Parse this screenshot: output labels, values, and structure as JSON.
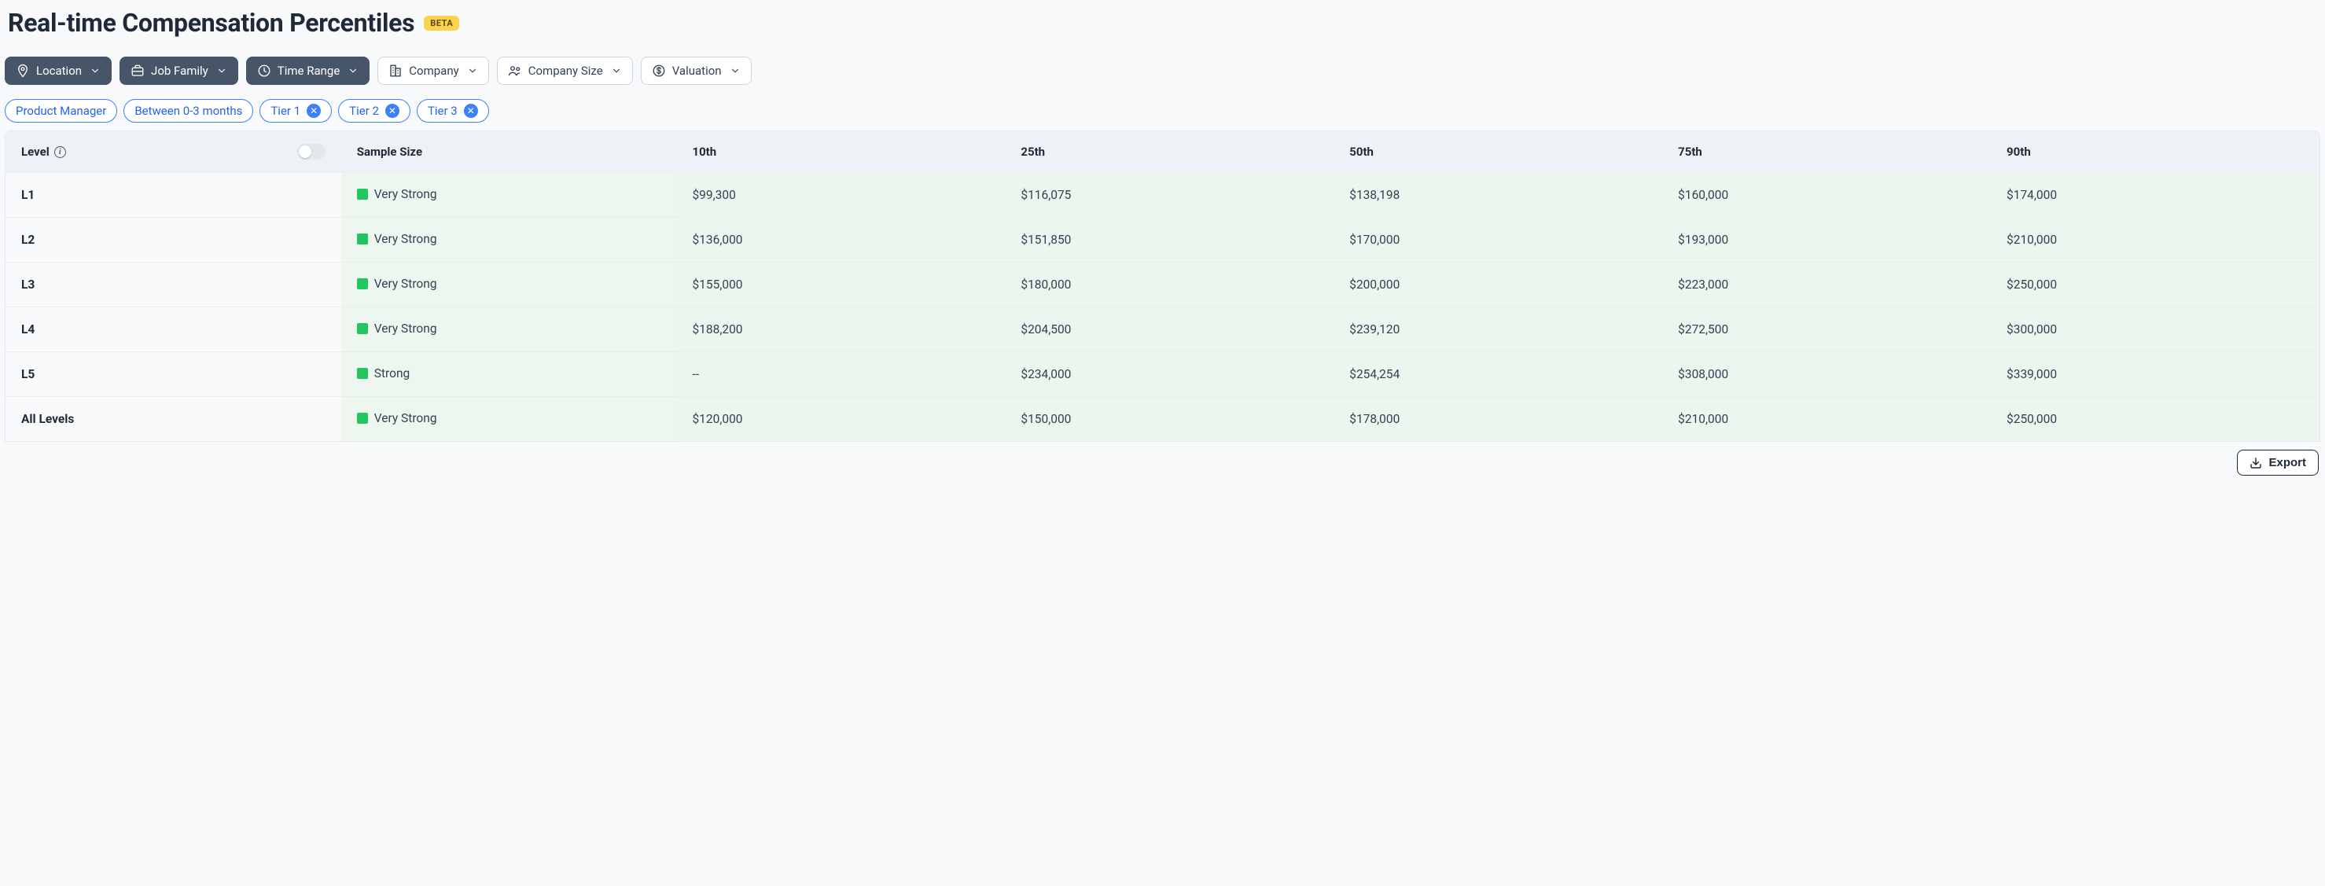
{
  "header": {
    "title": "Real-time Compensation Percentiles",
    "badge": "BETA"
  },
  "filters": {
    "primary": [
      {
        "key": "location",
        "label": "Location",
        "icon": "pin",
        "style": "dark"
      },
      {
        "key": "job-family",
        "label": "Job Family",
        "icon": "briefcase",
        "style": "dark"
      },
      {
        "key": "time-range",
        "label": "Time Range",
        "icon": "clock",
        "style": "dark"
      },
      {
        "key": "company",
        "label": "Company",
        "icon": "building",
        "style": "light"
      },
      {
        "key": "company-size",
        "label": "Company Size",
        "icon": "people",
        "style": "light"
      },
      {
        "key": "valuation",
        "label": "Valuation",
        "icon": "dollar",
        "style": "light"
      }
    ],
    "chips": [
      {
        "key": "product-manager",
        "label": "Product Manager",
        "removable": false
      },
      {
        "key": "time-range-chip",
        "label": "Between 0-3 months",
        "removable": false
      },
      {
        "key": "tier-1",
        "label": "Tier 1",
        "removable": true
      },
      {
        "key": "tier-2",
        "label": "Tier 2",
        "removable": true
      },
      {
        "key": "tier-3",
        "label": "Tier 3",
        "removable": true
      }
    ]
  },
  "table": {
    "columns": {
      "level": "Level",
      "sample": "Sample Size",
      "percentiles": [
        "10th",
        "25th",
        "50th",
        "75th",
        "90th"
      ]
    },
    "strength_color": "#22c55e",
    "header_bg": "#eef2f7",
    "pct_cell_bg": "#ecf5ee",
    "sample_cell_bg": "#edf6ef",
    "rows": [
      {
        "level": "L1",
        "strength": "Very Strong",
        "values": [
          "$99,300",
          "$116,075",
          "$138,198",
          "$160,000",
          "$174,000"
        ]
      },
      {
        "level": "L2",
        "strength": "Very Strong",
        "values": [
          "$136,000",
          "$151,850",
          "$170,000",
          "$193,000",
          "$210,000"
        ]
      },
      {
        "level": "L3",
        "strength": "Very Strong",
        "values": [
          "$155,000",
          "$180,000",
          "$200,000",
          "$223,000",
          "$250,000"
        ]
      },
      {
        "level": "L4",
        "strength": "Very Strong",
        "values": [
          "$188,200",
          "$204,500",
          "$239,120",
          "$272,500",
          "$300,000"
        ]
      },
      {
        "level": "L5",
        "strength": "Strong",
        "values": [
          "--",
          "$234,000",
          "$254,254",
          "$308,000",
          "$339,000"
        ]
      },
      {
        "level": "All Levels",
        "strength": "Very Strong",
        "values": [
          "$120,000",
          "$150,000",
          "$178,000",
          "$210,000",
          "$250,000"
        ]
      }
    ]
  },
  "actions": {
    "export": "Export"
  }
}
